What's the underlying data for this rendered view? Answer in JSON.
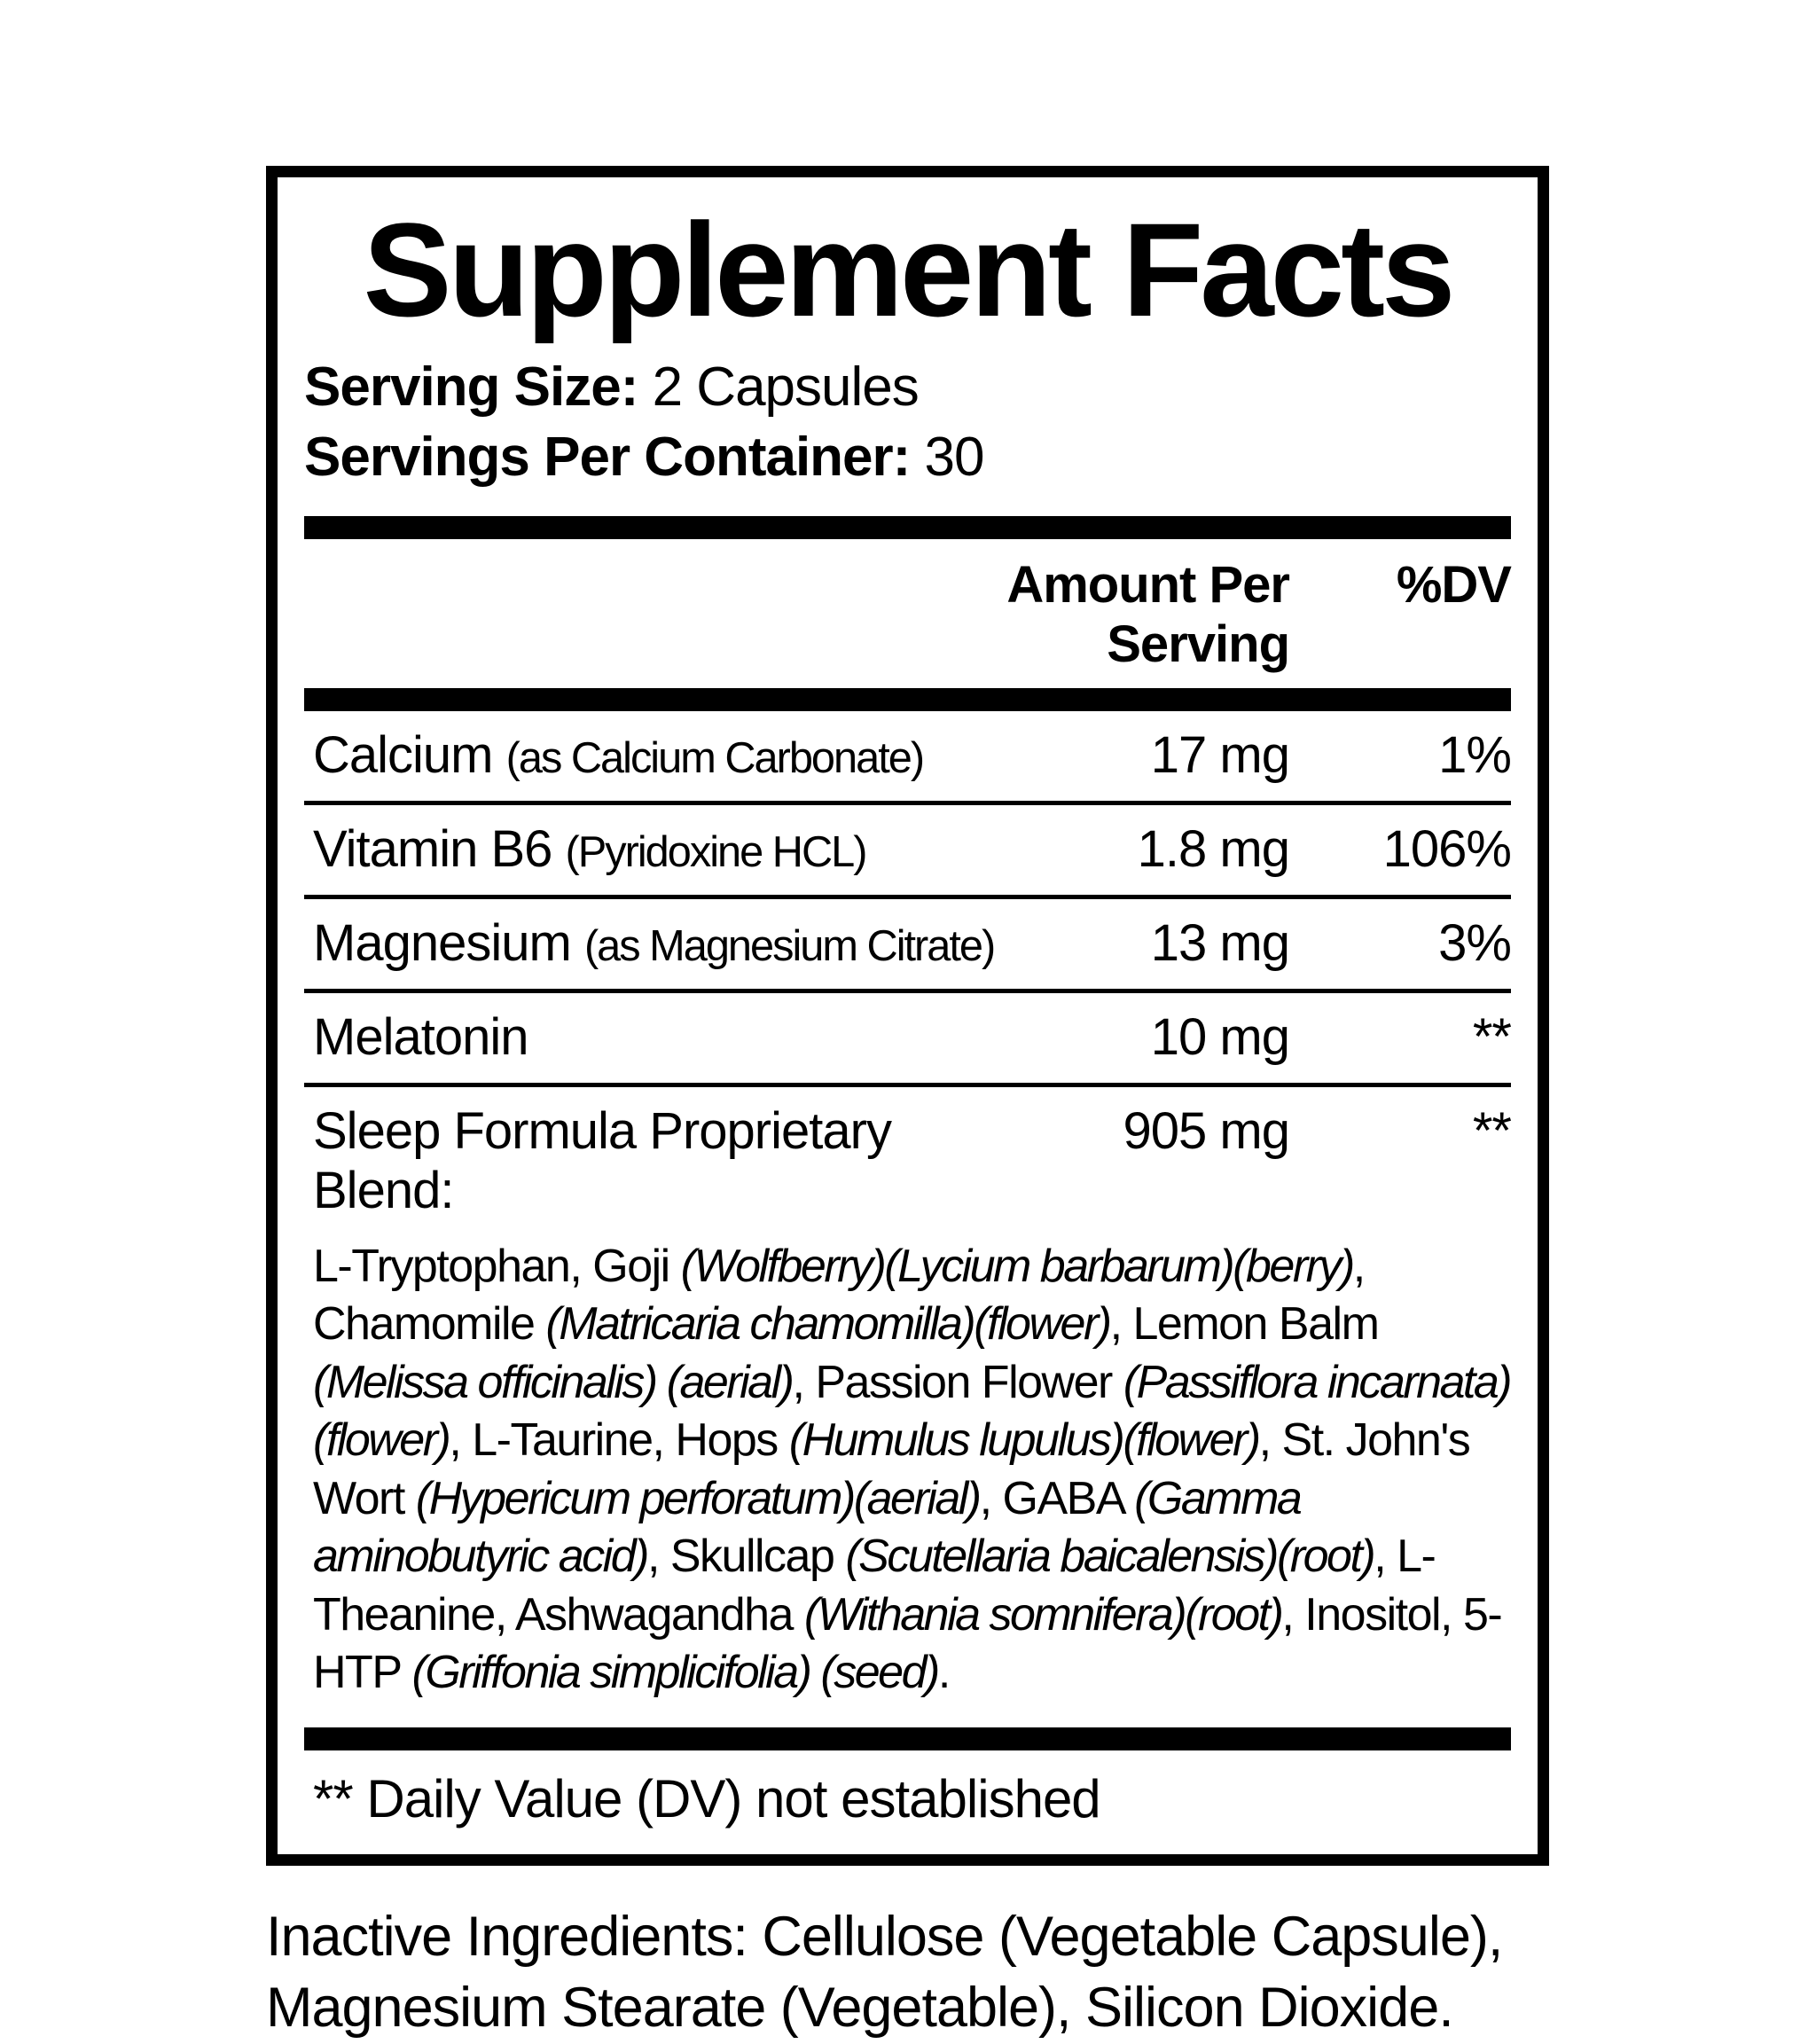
{
  "colors": {
    "text": "#000000",
    "background": "#ffffff",
    "rule": "#000000"
  },
  "panel": {
    "title": "Supplement Facts",
    "serving_size": {
      "label": "Serving Size:",
      "value": "2 Capsules"
    },
    "servings_per_container": {
      "label": "Servings Per Container:",
      "value": "30"
    },
    "columns": {
      "amount": "Amount Per Serving",
      "dv": "%DV"
    },
    "rows": [
      {
        "name": "Calcium",
        "detail": "(as Calcium Carbonate)",
        "amount": "17 mg",
        "dv": "1%"
      },
      {
        "name": "Vitamin B6",
        "detail": "(Pyridoxine HCL)",
        "amount": "1.8 mg",
        "dv": "106%"
      },
      {
        "name": "Magnesium",
        "detail": "(as Magnesium Citrate)",
        "amount": "13 mg",
        "dv": "3%"
      },
      {
        "name": "Melatonin",
        "detail": "",
        "amount": "10 mg",
        "dv": "**"
      },
      {
        "name": "Sleep Formula Proprietary Blend:",
        "detail": "",
        "amount": "905 mg",
        "dv": "**"
      }
    ],
    "blend_segments": [
      {
        "text": "L-Tryptophan, Goji ",
        "italic": false
      },
      {
        "text": "(Wolfberry)(Lycium barbarum)(berry)",
        "italic": true
      },
      {
        "text": ", Chamomile ",
        "italic": false
      },
      {
        "text": "(Matricaria chamomilla)(flower)",
        "italic": true
      },
      {
        "text": ", Lemon Balm ",
        "italic": false
      },
      {
        "text": "(Melissa officinalis) (aerial)",
        "italic": true
      },
      {
        "text": ", Passion Flower ",
        "italic": false
      },
      {
        "text": "(Passiflora incarnata)(flower)",
        "italic": true
      },
      {
        "text": ", L-Taurine, Hops ",
        "italic": false
      },
      {
        "text": "(Humulus lupulus)(flower)",
        "italic": true
      },
      {
        "text": ", St. John's Wort ",
        "italic": false
      },
      {
        "text": "(Hypericum perforatum)(aerial)",
        "italic": true
      },
      {
        "text": ", GABA ",
        "italic": false
      },
      {
        "text": "(Gamma aminobutyric acid)",
        "italic": true
      },
      {
        "text": ", Skullcap ",
        "italic": false
      },
      {
        "text": "(Scutellaria baicalensis)(root)",
        "italic": true
      },
      {
        "text": ", L-Theanine, Ashwagandha ",
        "italic": false
      },
      {
        "text": "(Withania somnifera)(root)",
        "italic": true
      },
      {
        "text": ", Inositol, 5-HTP ",
        "italic": false
      },
      {
        "text": "(Griffonia simplicifolia) (seed)",
        "italic": true
      },
      {
        "text": ".",
        "italic": false
      }
    ],
    "footnote": "** Daily Value (DV) not established"
  },
  "inactive_ingredients": {
    "lines": [
      "Inactive Ingredients: Cellulose (Vegetable Capsule),",
      "Magnesium Stearate (Vegetable), Silicon Dioxide."
    ]
  }
}
